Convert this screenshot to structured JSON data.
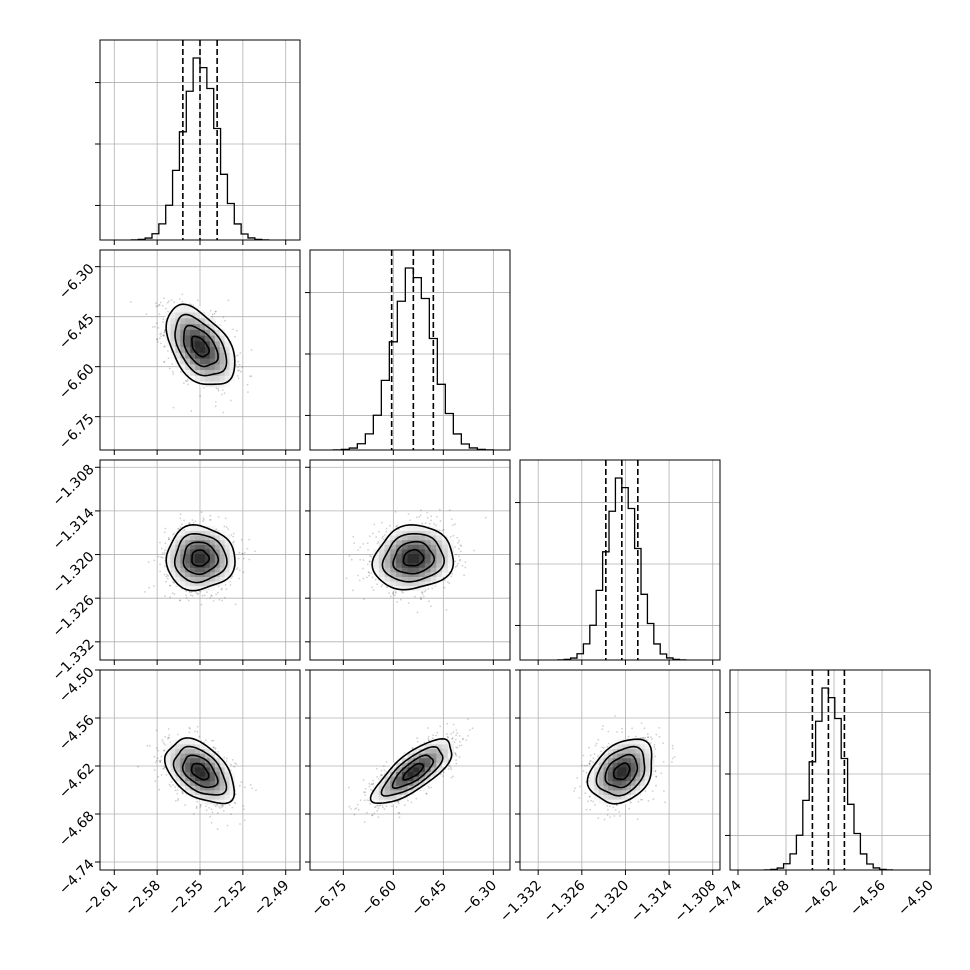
{
  "chart_data": {
    "type": "corner",
    "parameters": [
      {
        "index": 0,
        "median": -2.55,
        "q16": -2.562,
        "q84": -2.538,
        "range": [
          -2.62,
          -2.48
        ],
        "ticks": [
          -2.61,
          -2.58,
          -2.55,
          -2.52,
          -2.49
        ],
        "tick_labels": [
          "−2.61",
          "−2.58",
          "−2.55",
          "−2.52",
          "−2.49"
        ],
        "sigma": 0.012
      },
      {
        "index": 1,
        "median": -6.54,
        "q16": -6.605,
        "q84": -6.48,
        "range": [
          -6.85,
          -6.25
        ],
        "ticks": [
          -6.75,
          -6.6,
          -6.45,
          -6.3
        ],
        "tick_labels": [
          "−6.75",
          "−6.60",
          "−6.45",
          "−6.30"
        ],
        "sigma": 0.06
      },
      {
        "index": 2,
        "median": -1.3205,
        "q16": -1.3227,
        "q84": -1.3183,
        "range": [
          -1.3345,
          -1.307
        ],
        "ticks": [
          -1.332,
          -1.326,
          -1.32,
          -1.314,
          -1.308
        ],
        "tick_labels": [
          "−1.332",
          "−1.326",
          "−1.320",
          "−1.314",
          "−1.308"
        ],
        "sigma": 0.0022
      },
      {
        "index": 3,
        "median": -4.627,
        "q16": -4.647,
        "q84": -4.607,
        "range": [
          -4.75,
          -4.5
        ],
        "ticks": [
          -4.74,
          -4.68,
          -4.62,
          -4.56,
          -4.5
        ],
        "tick_labels": [
          "−4.74",
          "−4.68",
          "−4.62",
          "−4.56",
          "−4.50"
        ],
        "sigma": 0.02
      }
    ],
    "correlations": {
      "1-0": -0.45,
      "2-0": 0.0,
      "2-1": 0.1,
      "3-0": -0.45,
      "3-1": 0.75,
      "3-2": 0.3
    },
    "histogram_bins": 20,
    "quantile_lines": "dashed",
    "contours": "filled-density",
    "grid": true
  }
}
